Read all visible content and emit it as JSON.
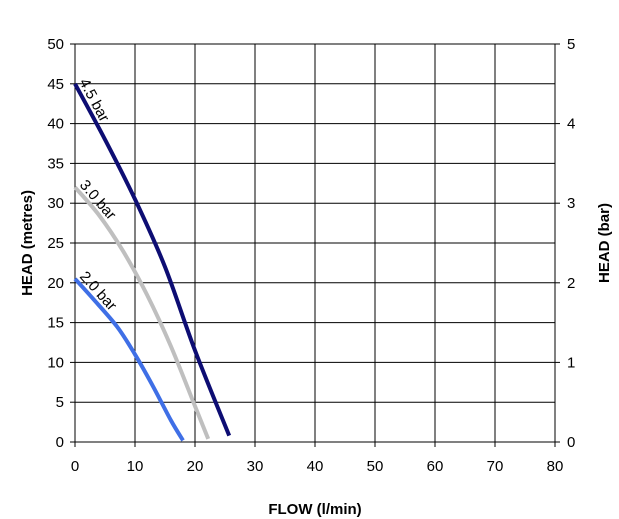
{
  "chart_data": {
    "type": "line",
    "title": "",
    "xlabel": "FLOW (l/min)",
    "ylabel": "HEAD (metres)",
    "y2label": "HEAD (bar)",
    "xlim": [
      0,
      80
    ],
    "ylim": [
      0,
      50
    ],
    "y2lim": [
      0,
      5
    ],
    "xticks": [
      0,
      10,
      20,
      30,
      40,
      50,
      60,
      70,
      80
    ],
    "yticks": [
      0,
      5,
      10,
      15,
      20,
      25,
      30,
      35,
      40,
      45,
      50
    ],
    "y2ticks": [
      0,
      1,
      2,
      3,
      4,
      5
    ],
    "grid": true,
    "legend": "none",
    "series": [
      {
        "name": "4.5 bar",
        "color": "#0d0d73",
        "x": [
          0,
          5,
          10,
          15,
          20,
          25.7
        ],
        "y": [
          45,
          38,
          30.5,
          22,
          11.5,
          0.8
        ]
      },
      {
        "name": "3.0 bar",
        "color": "#bfbfbf",
        "x": [
          0,
          4,
          8,
          12,
          16,
          20,
          22.2
        ],
        "y": [
          32,
          28.5,
          24,
          18.5,
          12,
          4.5,
          0.4
        ]
      },
      {
        "name": "2.0 bar",
        "color": "#3f6fe6",
        "x": [
          0,
          3,
          7,
          10,
          13,
          16,
          18
        ],
        "y": [
          20.5,
          18,
          14.5,
          11,
          7,
          2.7,
          0.2
        ]
      }
    ]
  }
}
